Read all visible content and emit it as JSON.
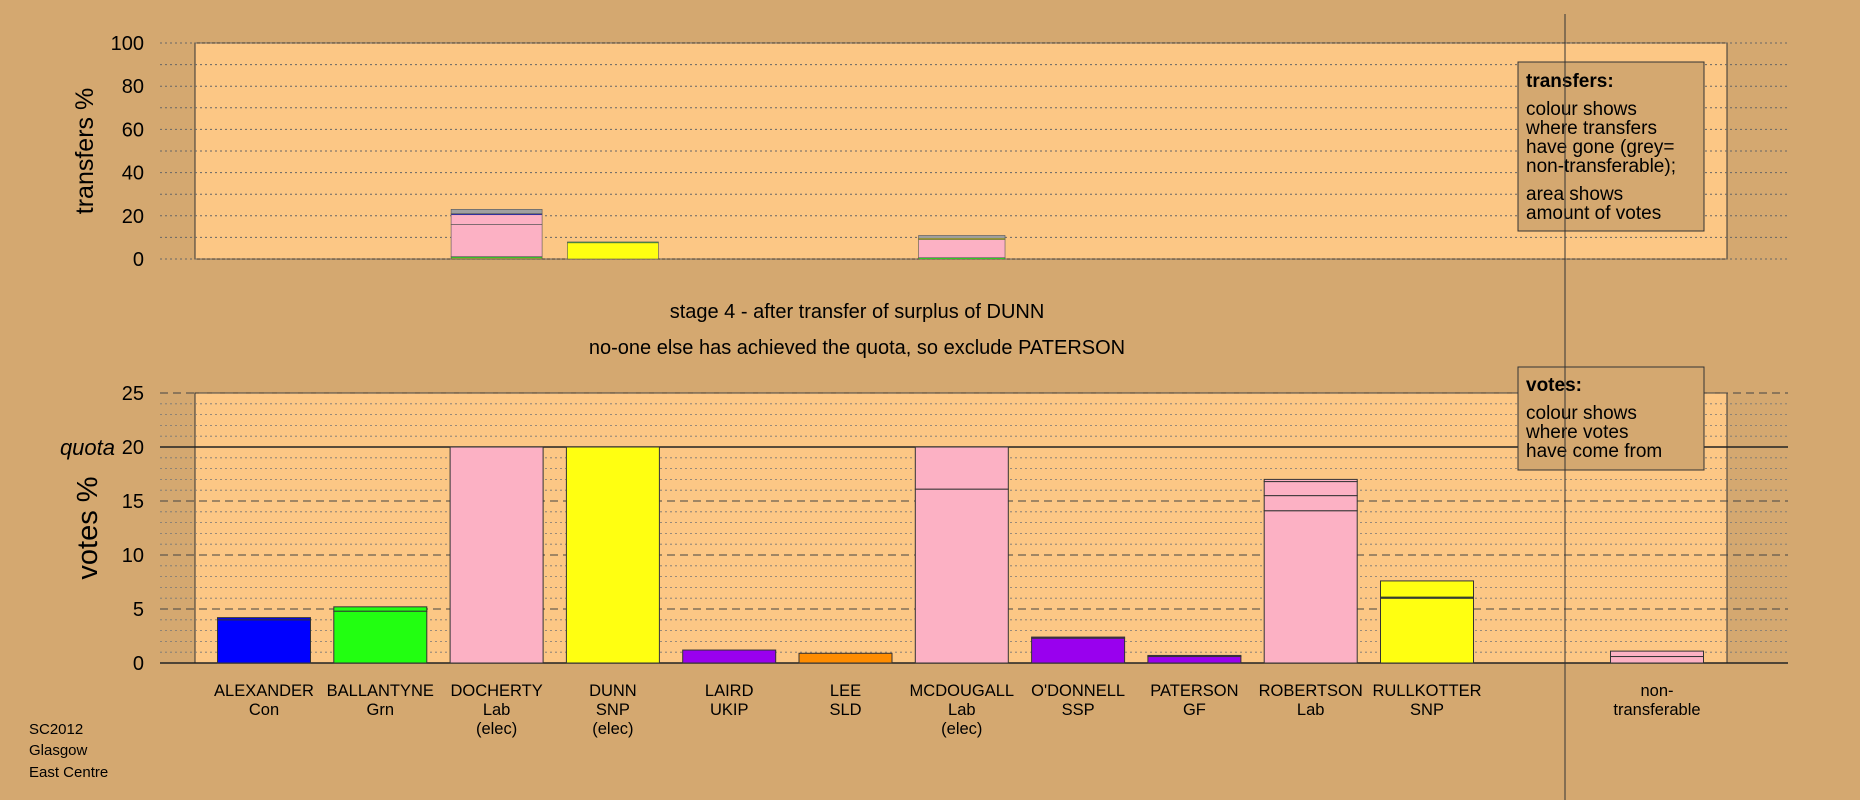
{
  "colors": {
    "background": "#d4a870",
    "plot_area": "#fcc785",
    "Con": "#0000ff",
    "Grn": "#22ff11",
    "Lab": "#fcb1c4",
    "SNP": "#ffff11",
    "UKIP": "#9900ee",
    "SLD": "#ff8c00",
    "SSP": "#9900ee",
    "GF": "#9900ee",
    "nontransferable": "#a0a0a0"
  },
  "stage_title": "stage 4 - after transfer of surplus of DUNN",
  "stage_subtitle": "no-one else has achieved the quota, so exclude PATERSON",
  "footer": [
    "SC2012",
    "Glasgow",
    "East Centre"
  ],
  "chart_data": [
    {
      "type": "bar",
      "name": "transfers",
      "ylabel": "transfers %",
      "ylim": [
        0,
        100
      ],
      "yticks": [
        0,
        20,
        40,
        60,
        80,
        100
      ],
      "grid": true,
      "legend_box": {
        "title": "transfers:",
        "lines": [
          "colour shows",
          "where transfers",
          "have gone (grey=",
          "non-transferable);"
        ],
        "lines2": [
          "area shows",
          "amount of votes"
        ],
        "placement": "top-right"
      },
      "bars": [
        {
          "index": 2,
          "width_share": 1.0,
          "segments": [
            {
              "party": "SNP",
              "value": 0.5
            },
            {
              "party": "Grn",
              "value": 0.6
            },
            {
              "party": "Lab",
              "value": 14.9
            },
            {
              "party": "Lab",
              "value": 4.5
            },
            {
              "party": "Con",
              "value": 0.5
            },
            {
              "party": "nontransferable",
              "value": 2.0
            }
          ]
        },
        {
          "index": 3,
          "width_share": 1.0,
          "segments": [
            {
              "party": "SNP",
              "value": 7.5
            },
            {
              "party": "Grn",
              "value": 0.4
            }
          ]
        },
        {
          "index": 6,
          "width_share": 0.95,
          "segments": [
            {
              "party": "Grn",
              "value": 0.6
            },
            {
              "party": "Lab",
              "value": 8.4
            },
            {
              "party": "SNP",
              "value": 0.6
            },
            {
              "party": "nontransferable",
              "value": 1.3
            }
          ]
        }
      ]
    },
    {
      "type": "bar",
      "name": "votes",
      "ylabel": "votes %",
      "ylim": [
        0,
        25
      ],
      "yticks": [
        0,
        5,
        10,
        15,
        20,
        25
      ],
      "quota": 20,
      "quota_label": "quota",
      "grid": true,
      "legend_box": {
        "title": "votes:",
        "lines": [
          "colour shows",
          "where votes",
          "have come from"
        ],
        "placement": "top-right"
      },
      "candidates": [
        {
          "name": "ALEXANDER",
          "party": "Con",
          "note": "",
          "segments": [
            {
              "party": "Con",
              "value": 4.0
            },
            {
              "party": "Con",
              "value": 0.2
            }
          ]
        },
        {
          "name": "BALLANTYNE",
          "party": "Grn",
          "note": "",
          "segments": [
            {
              "party": "Grn",
              "value": 4.8
            },
            {
              "party": "Grn",
              "value": 0.4
            }
          ]
        },
        {
          "name": "DOCHERTY",
          "party": "Lab",
          "note": "(elec)",
          "segments": [
            {
              "party": "Lab",
              "value": 20.0
            }
          ]
        },
        {
          "name": "DUNN",
          "party": "SNP",
          "note": "(elec)",
          "segments": [
            {
              "party": "SNP",
              "value": 20.0
            }
          ]
        },
        {
          "name": "LAIRD",
          "party": "UKIP",
          "note": "",
          "segments": [
            {
              "party": "UKIP",
              "value": 1.2
            }
          ]
        },
        {
          "name": "LEE",
          "party": "SLD",
          "note": "",
          "segments": [
            {
              "party": "SLD",
              "value": 0.9
            }
          ]
        },
        {
          "name": "MCDOUGALL",
          "party": "Lab",
          "note": "(elec)",
          "segments": [
            {
              "party": "Lab",
              "value": 16.1
            },
            {
              "party": "Lab",
              "value": 3.9
            }
          ]
        },
        {
          "name": "O'DONNELL",
          "party": "SSP",
          "note": "",
          "segments": [
            {
              "party": "SSP",
              "value": 2.3
            },
            {
              "party": "SSP",
              "value": 0.1
            }
          ]
        },
        {
          "name": "PATERSON",
          "party": "GF",
          "note": "",
          "segments": [
            {
              "party": "GF",
              "value": 0.6
            },
            {
              "party": "GF",
              "value": 0.1
            }
          ]
        },
        {
          "name": "ROBERTSON",
          "party": "Lab",
          "note": "",
          "segments": [
            {
              "party": "Lab",
              "value": 14.1
            },
            {
              "party": "Lab",
              "value": 1.4
            },
            {
              "party": "Lab",
              "value": 1.3
            },
            {
              "party": "Lab",
              "value": 0.2
            }
          ]
        },
        {
          "name": "RULLKOTTER",
          "party": "SNP",
          "note": "",
          "segments": [
            {
              "party": "SNP",
              "value": 6.0
            },
            {
              "party": "Grn",
              "value": 0.1
            },
            {
              "party": "SNP",
              "value": 1.5
            }
          ]
        }
      ],
      "nontransferable": {
        "label_line1": "non-",
        "label_line2": "transferable",
        "segments": [
          {
            "party": "Lab",
            "value": 0.6
          },
          {
            "party": "Lab",
            "value": 0.5
          }
        ]
      }
    }
  ]
}
